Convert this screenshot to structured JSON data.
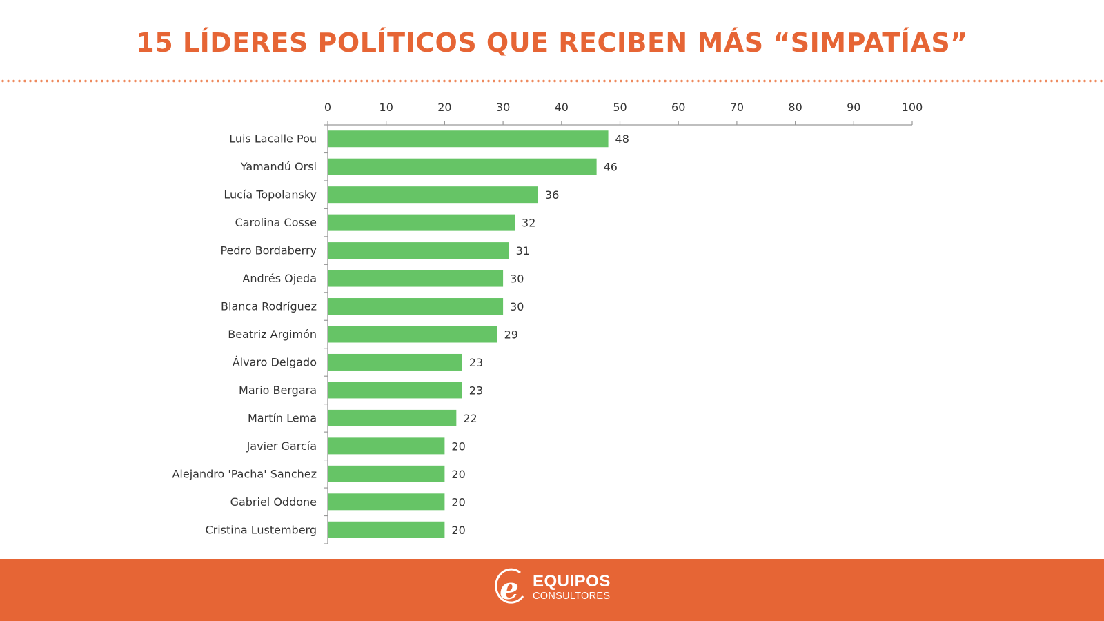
{
  "header": {
    "title": "15 LÍDERES POLÍTICOS QUE RECIBEN MÁS “SIMPATÍAS”"
  },
  "colors": {
    "accent": "#E66535",
    "bar": "#66C466",
    "text": "#333333",
    "axis": "#999999"
  },
  "chart_data": {
    "type": "bar",
    "orientation": "horizontal",
    "title": "15 LÍDERES POLÍTICOS QUE RECIBEN MÁS “SIMPATÍAS”",
    "xlabel": "",
    "ylabel": "",
    "xlim": [
      0,
      100
    ],
    "xticks": [
      0,
      10,
      20,
      30,
      40,
      50,
      60,
      70,
      80,
      90,
      100
    ],
    "x_axis_position": "top",
    "grid": false,
    "legend": "none",
    "categories": [
      "Luis Lacalle Pou",
      "Yamandú Orsi",
      "Lucía Topolansky",
      "Carolina Cosse",
      "Pedro Bordaberry",
      "Andrés Ojeda",
      "Blanca Rodríguez",
      "Beatriz Argimón",
      "Álvaro Delgado",
      "Mario Bergara",
      "Martín Lema",
      "Javier García",
      "Alejandro 'Pacha' Sanchez",
      "Gabriel Oddone",
      "Cristina Lustemberg"
    ],
    "values": [
      48,
      46,
      36,
      32,
      31,
      30,
      30,
      29,
      23,
      23,
      22,
      20,
      20,
      20,
      20
    ],
    "data_labels": true
  },
  "footer": {
    "logo_mark": "e",
    "brand_name": "EQUIPOS",
    "brand_sub": "CONSULTORES"
  }
}
